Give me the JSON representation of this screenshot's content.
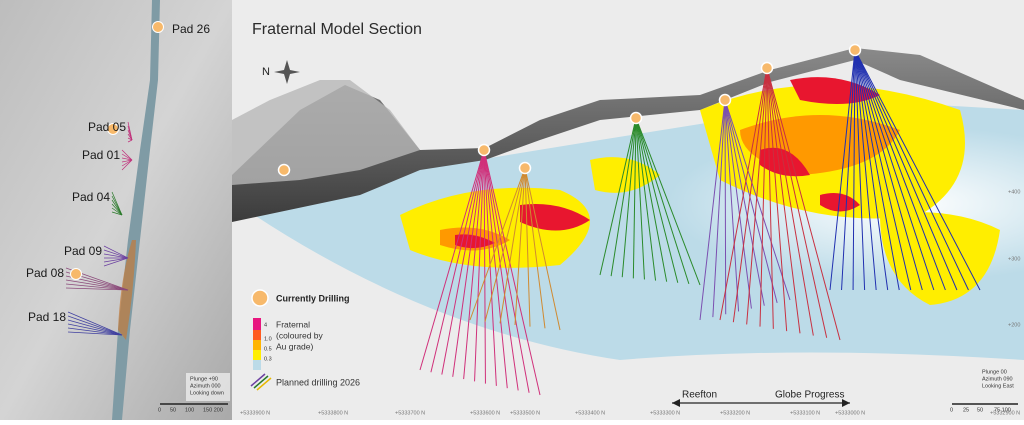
{
  "plan_view": {
    "pads": [
      "Pad 26",
      "Pad 05",
      "Pad 01",
      "Pad 04",
      "Pad 09",
      "Pad 08",
      "Pad 18"
    ],
    "view_note": [
      "Plunge +90",
      "Azimuth 000",
      "Looking down"
    ],
    "scale": [
      "0",
      "50",
      "100",
      "150 200"
    ]
  },
  "section": {
    "title": "Fraternal Model Section",
    "north": "N",
    "legend": {
      "currently_drilling": "Currently Drilling",
      "grade_title": [
        "Fraternal",
        "(coloured by",
        "Au grade)"
      ],
      "grade_steps": [
        "4",
        "1.0",
        "0.5",
        "0.3"
      ],
      "planned": "Planned drilling 2026"
    },
    "direction": {
      "left": "Reefton",
      "right": "Globe Progress"
    },
    "northings": [
      "+5333900 N",
      "+5333800 N",
      "+5333700 N",
      "+5333600 N",
      "+5333500 N",
      "+5333400 N",
      "+5333300 N",
      "+5333200 N",
      "+5333100 N",
      "+5333000 N",
      "+5332900 N"
    ],
    "elevations": [
      "+400",
      "+300",
      "+200"
    ],
    "view_note": [
      "Plunge 00",
      "Azimuth 090",
      "Looking East"
    ],
    "scale": [
      "0",
      "25",
      "50",
      "75 100"
    ]
  }
}
